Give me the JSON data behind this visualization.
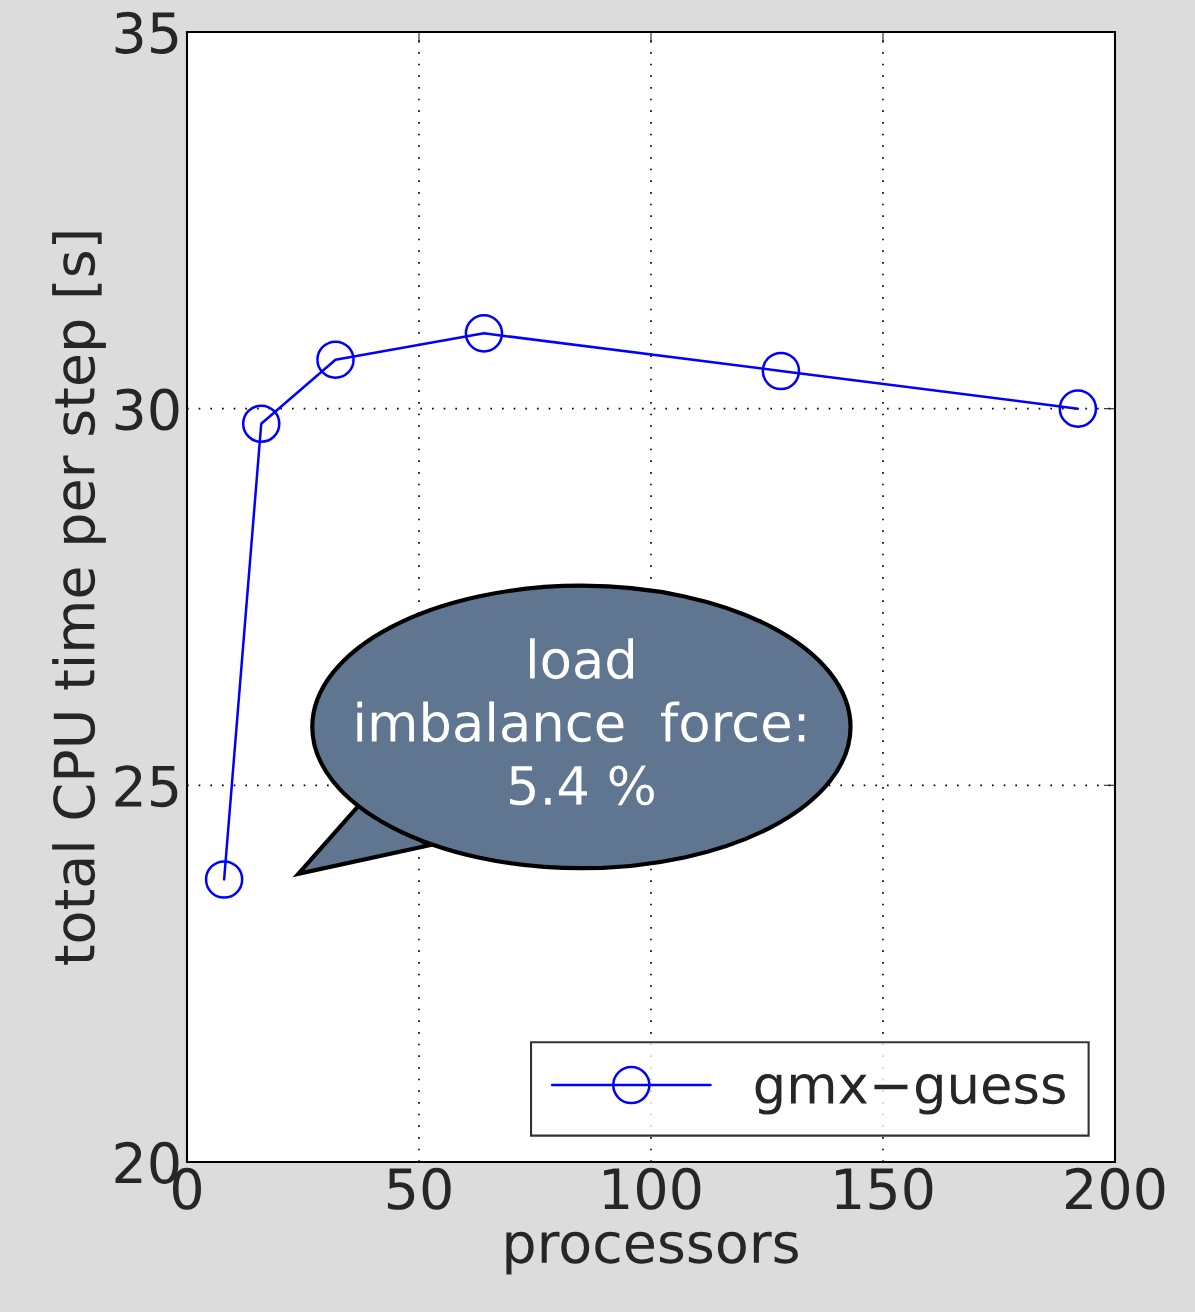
{
  "chart_data": {
    "type": "line",
    "xlabel": "processors",
    "ylabel": "total CPU time per step [s]",
    "x": [
      8,
      16,
      32,
      64,
      128,
      192
    ],
    "series": [
      {
        "name": "gmx−guess",
        "color": "#0000ff",
        "values": [
          23.75,
          29.8,
          30.65,
          31.0,
          30.5,
          30.0
        ]
      }
    ],
    "xlim": [
      0,
      200
    ],
    "xticks": [
      0,
      50,
      100,
      150,
      200
    ],
    "ylim": [
      20,
      35
    ],
    "yticks": [
      20,
      25,
      30,
      35
    ],
    "grid": true,
    "legend": "bottom right",
    "marker": "circle",
    "line_style": "solid",
    "annotations": [
      "load\nimbalance  force:\n5.4 %"
    ]
  }
}
